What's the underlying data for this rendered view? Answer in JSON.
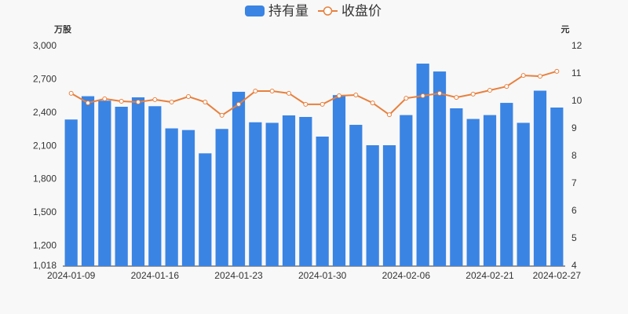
{
  "chart_data": {
    "type": "bar-line",
    "y_label": "万股",
    "y2_label": "元",
    "categories": [
      "2024-01-09",
      null,
      null,
      null,
      null,
      "2024-01-16",
      null,
      null,
      null,
      null,
      "2024-01-23",
      null,
      null,
      null,
      null,
      "2024-01-30",
      null,
      null,
      null,
      null,
      "2024-02-06",
      null,
      null,
      null,
      null,
      "2024-02-21",
      null,
      null,
      null,
      "2024-02-27"
    ],
    "series": [
      {
        "name": "持有量",
        "type": "bar",
        "color": "#3a84e4",
        "values": [
          2340,
          2550,
          2510,
          2455,
          2540,
          2460,
          2260,
          2245,
          2035,
          2255,
          2590,
          2315,
          2310,
          2377,
          2363,
          2186,
          2560,
          2292,
          2108,
          2108,
          2380,
          2844,
          2773,
          2441,
          2345,
          2380,
          2490,
          2310,
          2600,
          2448
        ]
      },
      {
        "name": "收盘价",
        "type": "line",
        "axis": "y2",
        "color": "#e8803d",
        "values": [
          10.29,
          9.94,
          10.09,
          10.0,
          9.97,
          10.06,
          9.97,
          10.17,
          9.97,
          9.49,
          9.89,
          10.37,
          10.37,
          10.29,
          9.89,
          9.89,
          10.2,
          10.23,
          9.94,
          9.51,
          10.11,
          10.2,
          10.29,
          10.14,
          10.26,
          10.4,
          10.54,
          10.94,
          10.91,
          11.09
        ]
      }
    ],
    "ylim": [
      1018,
      3000
    ],
    "yticks": [
      {
        "value": 1018,
        "label": "1,018"
      },
      {
        "value": 1200,
        "label": "1,200"
      },
      {
        "value": 1500,
        "label": "1,500"
      },
      {
        "value": 1800,
        "label": "1,800"
      },
      {
        "value": 2100,
        "label": "2,100"
      },
      {
        "value": 2400,
        "label": "2,400"
      },
      {
        "value": 2700,
        "label": "2,700"
      },
      {
        "value": 3000,
        "label": "3,000"
      }
    ],
    "y2lim": [
      4,
      12
    ],
    "y2ticks": [
      4,
      5,
      6,
      7,
      8,
      9,
      10,
      11,
      12
    ],
    "grid": false
  }
}
